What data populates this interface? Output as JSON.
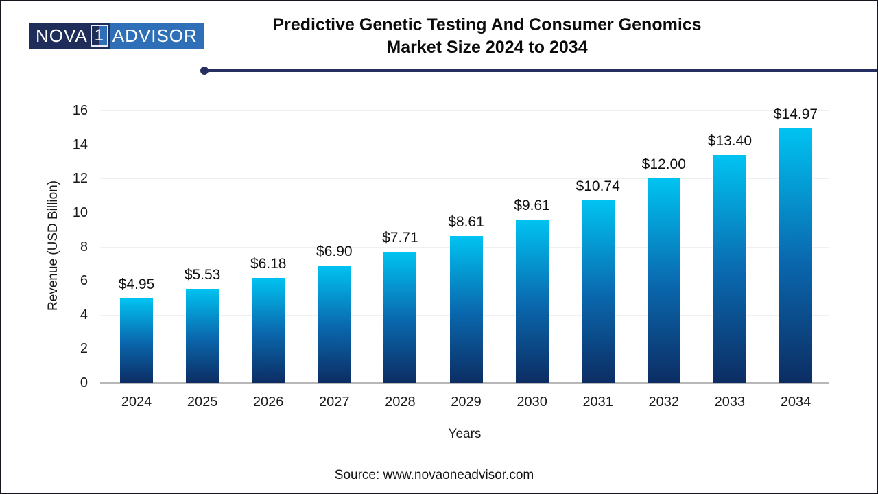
{
  "logo": {
    "part1": "NOVA",
    "part2": "1",
    "part3": "ADVISOR"
  },
  "header": {
    "title_line1": "Predictive Genetic Testing And Consumer Genomics",
    "title_line2": "Market Size 2024 to 2034"
  },
  "chart_data": {
    "type": "bar",
    "title": "Predictive Genetic Testing And Consumer Genomics Market Size 2024 to 2034",
    "categories": [
      "2024",
      "2025",
      "2026",
      "2027",
      "2028",
      "2029",
      "2030",
      "2031",
      "2032",
      "2033",
      "2034"
    ],
    "values": [
      4.95,
      5.53,
      6.18,
      6.9,
      7.71,
      8.61,
      9.61,
      10.74,
      12.0,
      13.4,
      14.97
    ],
    "bar_labels": [
      "$4.95",
      "$5.53",
      "$6.18",
      "$6.90",
      "$7.71",
      "$8.61",
      "$9.61",
      "$10.74",
      "$12.00",
      "$13.40",
      "$14.97"
    ],
    "xlabel": "Years",
    "ylabel": "Revenue (USD Billion)",
    "ylim": [
      0,
      16
    ],
    "ytick_step": 2,
    "grid": true,
    "legend": "none",
    "bar_gradient": [
      "#00c3f1",
      "#0a68ae",
      "#0c2d63"
    ]
  },
  "footer": {
    "source": "Source: www.novaoneadvisor.com"
  },
  "colors": {
    "accent_navy": "#242e60",
    "logo_dark": "#1f2d5a",
    "logo_blue": "#2e6fb8",
    "baseline_gray": "#b8b8b8",
    "gridline_gray": "#f0f0f0"
  }
}
